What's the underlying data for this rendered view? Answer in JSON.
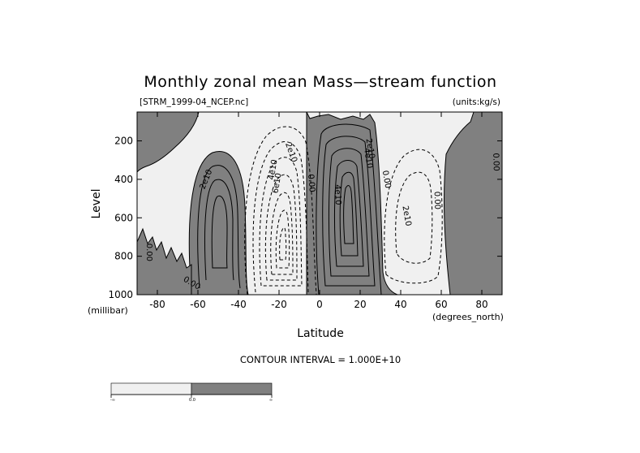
{
  "chart_data": {
    "type": "contour",
    "title": "Monthly zonal mean Mass—stream function",
    "file_label": "[STRM_1999-04_NCEP.nc]",
    "units_label": "(units:kg/s)",
    "xlabel": "Latitude",
    "ylabel": "Level",
    "x_unit": "(degrees_north)",
    "y_unit": "(millibar)",
    "xlim": [
      -90,
      90
    ],
    "ylim": [
      1000,
      50
    ],
    "y_reversed": true,
    "x_ticks": [
      -80,
      -60,
      -40,
      -20,
      0,
      20,
      40,
      60,
      80
    ],
    "x_tick_labels": [
      "-80",
      "-60",
      "-40",
      "-20",
      "0",
      "20",
      "40",
      "60",
      "80"
    ],
    "y_ticks": [
      200,
      400,
      600,
      800,
      1000
    ],
    "y_tick_labels": [
      "200",
      "400",
      "600",
      "800",
      "1000"
    ],
    "contour_interval_text": "CONTOUR INTERVAL = 1.000E+10",
    "contour_interval": 10000000000.0,
    "shading": {
      "negative_color": "#f0f0f0",
      "positive_color": "#808080"
    },
    "colorbar": {
      "labels": [
        "-∞",
        "0.0",
        "∞"
      ],
      "colors": [
        "#f0f0f0",
        "#808080"
      ]
    },
    "cells": [
      {
        "sign": "positive",
        "lat_range": [
          -62,
          -42
        ],
        "p_range": [
          150,
          1000
        ],
        "center": [
          -52,
          560
        ],
        "max_abs": 60000000000.0,
        "style": "solid"
      },
      {
        "sign": "negative",
        "lat_range": [
          -35,
          -1
        ],
        "p_range": [
          80,
          1000
        ],
        "center": [
          -17,
          620
        ],
        "max_abs": 80000000000.0,
        "style": "dashed"
      },
      {
        "sign": "positive",
        "lat_range": [
          0,
          28
        ],
        "p_range": [
          30,
          1000
        ],
        "center": [
          13,
          480
        ],
        "max_abs": 100000000000.0,
        "style": "solid"
      },
      {
        "sign": "negative",
        "lat_range": [
          30,
          57
        ],
        "p_range": [
          180,
          890
        ],
        "center": [
          45,
          520
        ],
        "max_abs": 20000000000.0,
        "style": "dashed"
      }
    ],
    "contour_labels": [
      {
        "text": "2e10",
        "lat": -56,
        "p": 400,
        "angle": -68
      },
      {
        "text": "0.00",
        "lat": -63,
        "p": 940,
        "angle": 30
      },
      {
        "text": "0.00",
        "lat": -84,
        "p": 780,
        "angle": 90
      },
      {
        "text": "4e10",
        "lat": -23,
        "p": 350,
        "angle": -80
      },
      {
        "text": "6e10",
        "lat": -21,
        "p": 420,
        "angle": -80
      },
      {
        "text": "2e10",
        "lat": -14,
        "p": 260,
        "angle": 70
      },
      {
        "text": "0.00",
        "lat": -4,
        "p": 420,
        "angle": 85
      },
      {
        "text": "2e10",
        "lat": 25,
        "p": 240,
        "angle": 80
      },
      {
        "text": "4e10",
        "lat": 24,
        "p": 290,
        "angle": 80
      },
      {
        "text": "4e10",
        "lat": 9,
        "p": 480,
        "angle": 88
      },
      {
        "text": "0.00",
        "lat": 33,
        "p": 400,
        "angle": 80
      },
      {
        "text": "2e10",
        "lat": 43,
        "p": 590,
        "angle": 80
      },
      {
        "text": "0.00",
        "lat": 58,
        "p": 510,
        "angle": 88
      },
      {
        "text": "0.00",
        "lat": 87,
        "p": 310,
        "angle": 88
      }
    ]
  }
}
